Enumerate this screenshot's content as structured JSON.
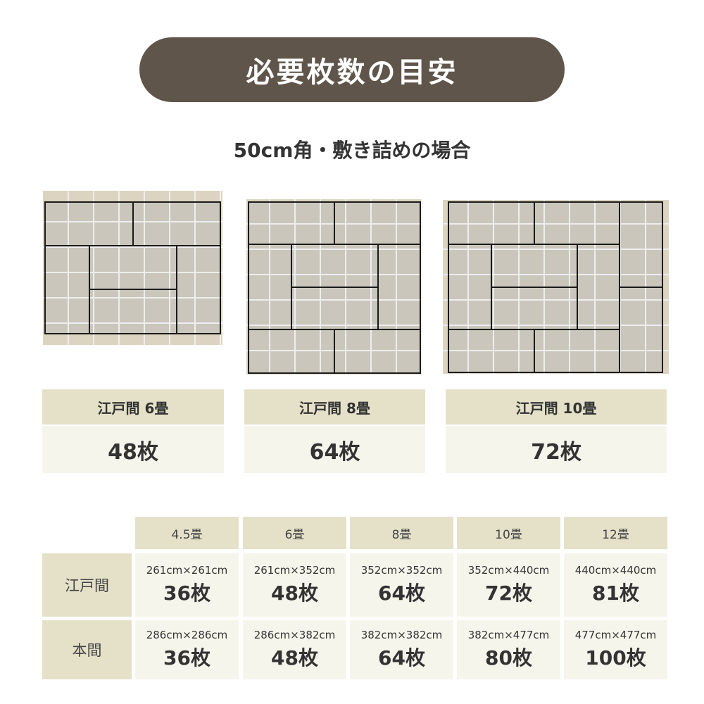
{
  "title": "必要枚数の目安",
  "subtitle": "50cm角・敷き詰めの場合",
  "colors": {
    "title_bg": "#60554a",
    "header_bg": "#e5e1c9",
    "cell_bg": "#f6f5ec",
    "floor_tan": "#dcd4c0",
    "tile_gray": "#cac6bc",
    "grid_line": "#eeeeee",
    "tatami_line": "#1a1a1a"
  },
  "examples": [
    {
      "room": "江戸間 6畳",
      "count": "48枚"
    },
    {
      "room": "江戸間 8畳",
      "count": "64枚"
    },
    {
      "room": "江戸間 10畳",
      "count": "72枚"
    }
  ],
  "table": {
    "columns": [
      "4.5畳",
      "6畳",
      "8畳",
      "10畳",
      "12畳"
    ],
    "rows": [
      {
        "label": "江戸間",
        "cells": [
          {
            "dim": "261cm×261cm",
            "count": "36枚"
          },
          {
            "dim": "261cm×352cm",
            "count": "48枚"
          },
          {
            "dim": "352cm×352cm",
            "count": "64枚"
          },
          {
            "dim": "352cm×440cm",
            "count": "72枚"
          },
          {
            "dim": "440cm×440cm",
            "count": "81枚"
          }
        ]
      },
      {
        "label": "本間",
        "cells": [
          {
            "dim": "286cm×286cm",
            "count": "36枚"
          },
          {
            "dim": "286cm×382cm",
            "count": "48枚"
          },
          {
            "dim": "382cm×382cm",
            "count": "64枚"
          },
          {
            "dim": "382cm×477cm",
            "count": "80枚"
          },
          {
            "dim": "477cm×477cm",
            "count": "100枚"
          }
        ]
      }
    ]
  }
}
